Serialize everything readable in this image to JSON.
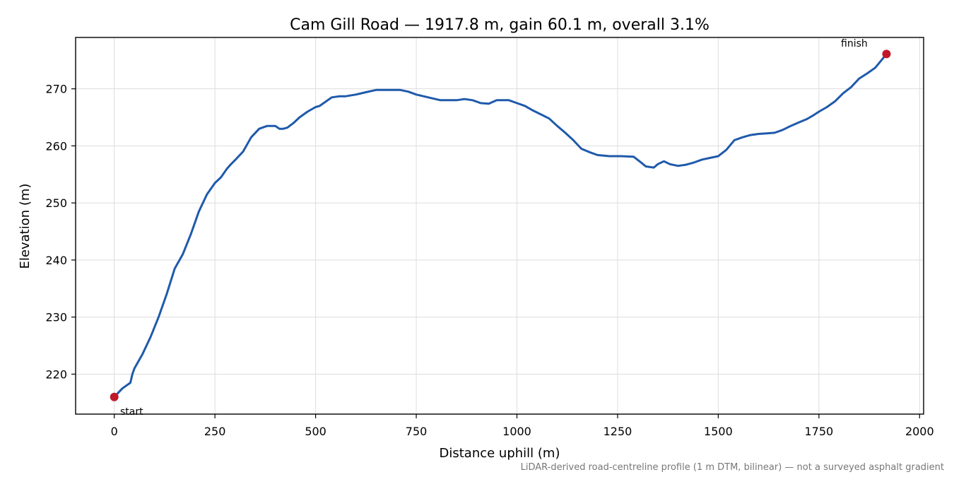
{
  "chart_data": {
    "type": "line",
    "title": "Cam Gill Road — 1917.8 m, gain 60.1 m, overall 3.1%",
    "xlabel": "Distance uphill (m)",
    "ylabel": "Elevation (m)",
    "xlim": [
      -96,
      2010
    ],
    "ylim": [
      213,
      279
    ],
    "x_ticks": [
      0,
      250,
      500,
      750,
      1000,
      1250,
      1500,
      1750,
      2000
    ],
    "y_ticks": [
      220,
      230,
      240,
      250,
      260,
      270
    ],
    "grid": true,
    "series": [
      {
        "color": "#1f5aab",
        "x": [
          0,
          20,
          40,
          45,
          50,
          70,
          90,
          110,
          130,
          150,
          170,
          190,
          210,
          230,
          250,
          265,
          280,
          290,
          300,
          320,
          340,
          360,
          380,
          400,
          410,
          420,
          430,
          445,
          460,
          480,
          500,
          510,
          520,
          540,
          560,
          575,
          600,
          625,
          650,
          670,
          690,
          710,
          730,
          750,
          780,
          810,
          830,
          850,
          870,
          890,
          910,
          930,
          950,
          965,
          980,
          1000,
          1020,
          1040,
          1060,
          1080,
          1100,
          1120,
          1140,
          1160,
          1180,
          1200,
          1230,
          1260,
          1290,
          1310,
          1320,
          1340,
          1350,
          1365,
          1380,
          1400,
          1420,
          1440,
          1460,
          1480,
          1500,
          1520,
          1540,
          1560,
          1580,
          1600,
          1620,
          1640,
          1660,
          1680,
          1700,
          1720,
          1735,
          1750,
          1770,
          1790,
          1810,
          1830,
          1850,
          1870,
          1890,
          1917.8
        ],
        "y": [
          216,
          217.5,
          218.5,
          220,
          221,
          223.5,
          226.5,
          230,
          234,
          238.5,
          241,
          244.5,
          248.5,
          251.5,
          253.5,
          254.5,
          256,
          256.8,
          257.5,
          259,
          261.5,
          263,
          263.5,
          263.5,
          263,
          263,
          263.2,
          264,
          265,
          266,
          266.8,
          267,
          267.5,
          268.5,
          268.7,
          268.7,
          269,
          269.4,
          269.8,
          269.8,
          269.8,
          269.8,
          269.5,
          269,
          268.5,
          268,
          268,
          268,
          268.2,
          268,
          267.5,
          267.4,
          268,
          268,
          268,
          267.5,
          267,
          266.2,
          265.5,
          264.8,
          263.5,
          262.3,
          261,
          259.5,
          258.9,
          258.4,
          258.2,
          258.2,
          258.1,
          257,
          256.4,
          256.2,
          256.8,
          257.3,
          256.8,
          256.5,
          256.7,
          257.1,
          257.6,
          257.9,
          258.2,
          259.3,
          261,
          261.5,
          261.9,
          262.1,
          262.2,
          262.3,
          262.8,
          263.5,
          264.1,
          264.7,
          265.3,
          266,
          266.8,
          267.8,
          269.2,
          270.3,
          271.8,
          272.7,
          273.7,
          276.1
        ]
      }
    ],
    "annotations": [
      {
        "text": "start",
        "x": 0,
        "y": 216
      },
      {
        "text": "finish",
        "x": 1917.8,
        "y": 276.1
      }
    ],
    "footnote": "LiDAR-derived road-centreline profile (1 m DTM, bilinear) — not a surveyed asphalt gradient",
    "marker_color": "#c0182a"
  }
}
